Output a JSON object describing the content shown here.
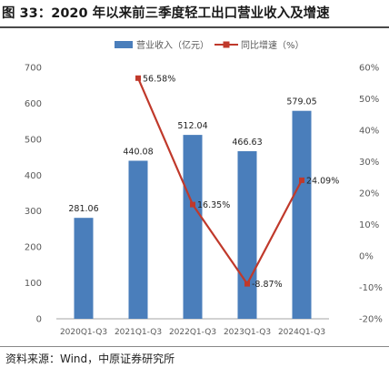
{
  "figure": {
    "title": "图 33：2020 年以来前三季度轻工出口营业收入及增速",
    "source": "资料来源：Wind，中原证券研究所"
  },
  "colors": {
    "bar": "#4a7ebb",
    "line": "#c0392b",
    "axis_text": "#595959",
    "label_text": "#222222",
    "axis_line": "#a6a6a6"
  },
  "chart_data": {
    "type": "bar",
    "categories": [
      "2020Q1-Q3",
      "2021Q1-Q3",
      "2022Q1-Q3",
      "2023Q1-Q3",
      "2024Q1-Q3"
    ],
    "series": [
      {
        "name": "营业收入（亿元）",
        "type": "bar",
        "axis": "left",
        "values": [
          281.06,
          440.08,
          512.04,
          466.63,
          579.05
        ],
        "labels": [
          "281.06",
          "440.08",
          "512.04",
          "466.63",
          "579.05"
        ]
      },
      {
        "name": "同比增速（%）",
        "type": "line",
        "axis": "right",
        "values": [
          null,
          56.58,
          16.35,
          -8.87,
          24.09
        ],
        "labels": [
          "",
          "56.58%",
          "16.35%",
          "-8.87%",
          "24.09%"
        ]
      }
    ],
    "y_left": {
      "min": 0,
      "max": 700,
      "step": 100,
      "ticks": [
        "0",
        "100",
        "200",
        "300",
        "400",
        "500",
        "600",
        "700"
      ]
    },
    "y_right": {
      "min": -20,
      "max": 60,
      "step": 10,
      "ticks": [
        "-20%",
        "-10%",
        "0%",
        "10%",
        "20%",
        "30%",
        "40%",
        "50%",
        "60%"
      ]
    },
    "legend_position": "top",
    "grid": false
  }
}
